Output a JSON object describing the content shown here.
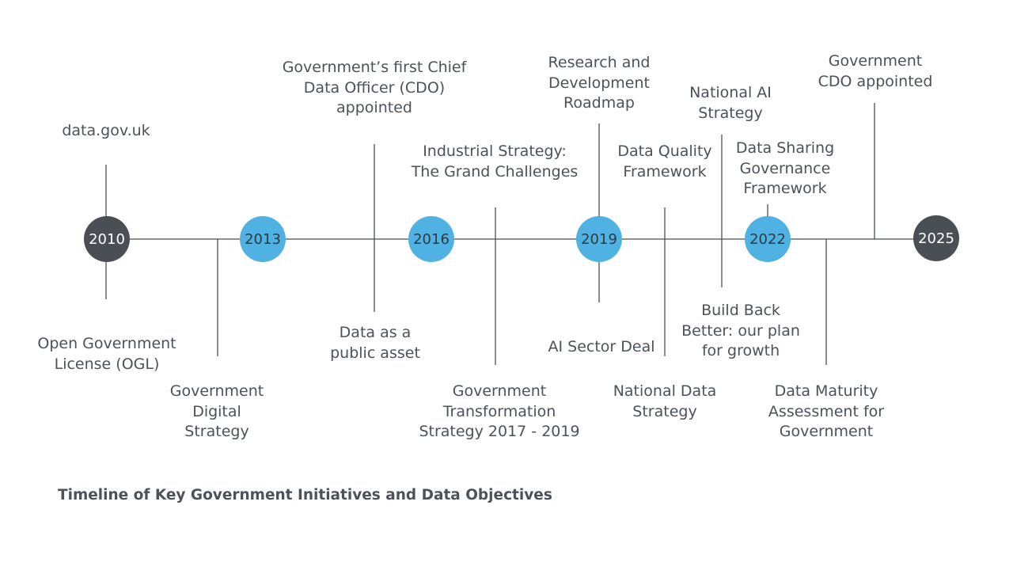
{
  "title": "Timeline of Key Government Initiatives and Data Objectives",
  "years": [
    "2010",
    "2013",
    "2016",
    "2019",
    "2022",
    "2025"
  ],
  "events": [
    {
      "key": "data-gov-uk",
      "text": "data.gov.uk"
    },
    {
      "key": "ogl",
      "text": "Open Government\nLicense (OGL)"
    },
    {
      "key": "gov-digital",
      "text": "Government\nDigital\nStrategy"
    },
    {
      "key": "first-cdo",
      "text": "Government’s first Chief\nData Officer (CDO)\nappointed"
    },
    {
      "key": "public-asset",
      "text": "Data as a\npublic asset"
    },
    {
      "key": "industrial",
      "text": "Industrial Strategy:\nThe Grand Challenges"
    },
    {
      "key": "transformation",
      "text": "Government\nTransformation\nStrategy 2017 - 2019"
    },
    {
      "key": "rnd",
      "text": "Research and\nDevelopment\nRoadmap"
    },
    {
      "key": "ai-sector",
      "text": "AI Sector Deal"
    },
    {
      "key": "data-quality",
      "text": "Data Quality\nFramework"
    },
    {
      "key": "national-data",
      "text": "National Data\nStrategy"
    },
    {
      "key": "national-ai",
      "text": "National AI\nStrategy"
    },
    {
      "key": "build-back",
      "text": "Build Back\nBetter: our plan\nfor growth"
    },
    {
      "key": "data-sharing",
      "text": "Data Sharing\nGovernance\nFramework"
    },
    {
      "key": "data-maturity",
      "text": "Data Maturity\nAssessment for\nGovernment"
    },
    {
      "key": "gov-cdo",
      "text": "Government\nCDO appointed"
    }
  ]
}
